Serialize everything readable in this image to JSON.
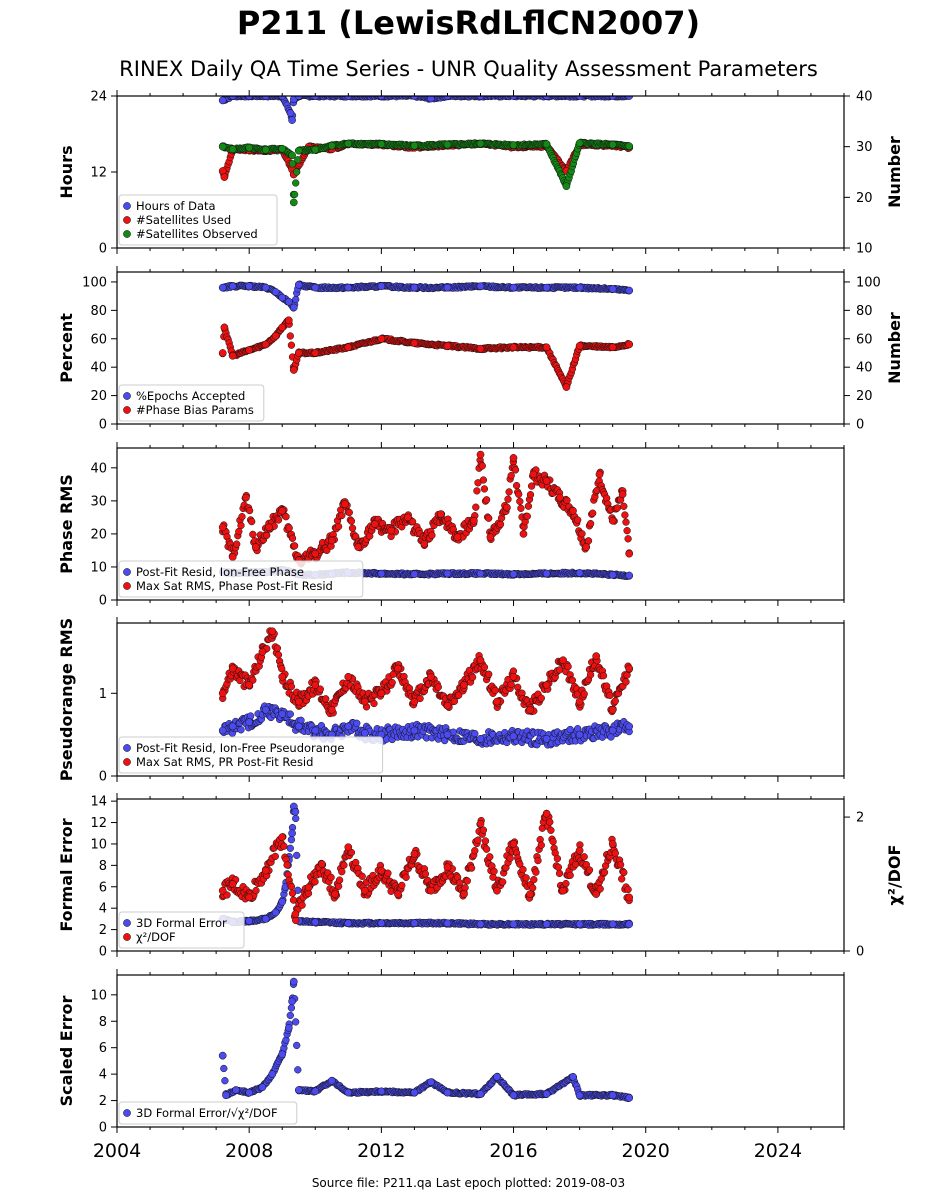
{
  "header": {
    "title": "P211 (LewisRdLflCN2007)",
    "subtitle": "RINEX Daily QA Time Series - UNR Quality Assessment Parameters"
  },
  "footer": {
    "source": "Source file: P211.qa Last epoch plotted: 2019-08-03"
  },
  "colors": {
    "blue": "#4b4bf0",
    "red": "#ee1111",
    "green": "#138a13",
    "edge": "#111111"
  },
  "chart_data": [
    {
      "type": "scatter",
      "ylabel": "Hours",
      "ylim": [
        0,
        24
      ],
      "yticks": [
        0,
        12,
        24
      ],
      "y2label": "Number",
      "y2lim": [
        10,
        40
      ],
      "y2ticks": [
        10,
        20,
        30,
        40
      ],
      "xlim": [
        2004,
        2026
      ],
      "legend_position": "lower-left",
      "series": [
        {
          "name": "Hours of Data",
          "color_key": "blue",
          "axis": "left",
          "x": [
            2007.2,
            2007.5,
            2008.0,
            2008.5,
            2009.0,
            2009.25,
            2009.3,
            2009.35,
            2009.5,
            2010.0,
            2011.0,
            2012.0,
            2013.0,
            2013.5,
            2014.0,
            2015.0,
            2016.0,
            2017.0,
            2018.0,
            2019.0,
            2019.5
          ],
          "y": [
            23.3,
            24,
            24,
            24,
            24,
            21.3,
            20.2,
            23.5,
            24,
            24,
            24,
            24,
            24,
            23.6,
            24,
            24,
            24,
            24,
            24,
            24,
            24
          ]
        },
        {
          "name": "#Satellites Used",
          "color_key": "red",
          "axis": "right",
          "x": [
            2007.2,
            2007.25,
            2007.5,
            2008.0,
            2008.5,
            2009.0,
            2009.3,
            2009.35,
            2009.8,
            2010.5,
            2011.0,
            2012.0,
            2013.0,
            2014.0,
            2015.0,
            2016.0,
            2017.0,
            2017.6,
            2018.0,
            2019.0,
            2019.5
          ],
          "y": [
            25.2,
            24,
            29.5,
            29.3,
            29.2,
            29.4,
            25.5,
            24.5,
            30,
            29.5,
            30.5,
            30.4,
            29.8,
            30.2,
            30.6,
            29.9,
            30.1,
            25.2,
            30.4,
            30.2,
            29.8
          ]
        },
        {
          "name": "#Satellites Observed",
          "color_key": "green",
          "axis": "right",
          "x": [
            2007.2,
            2007.5,
            2008.0,
            2008.5,
            2009.0,
            2009.3,
            2009.35,
            2009.5,
            2010.0,
            2010.5,
            2011.0,
            2012.0,
            2013.0,
            2014.0,
            2015.0,
            2016.0,
            2017.0,
            2017.6,
            2018.0,
            2019.0,
            2019.5
          ],
          "y": [
            30,
            29.5,
            29.8,
            29.4,
            29.6,
            28.3,
            19,
            29.2,
            29.4,
            30.2,
            30.6,
            30.5,
            30.2,
            30.4,
            30.6,
            30.3,
            30.5,
            22.2,
            30.7,
            30.4,
            30.1
          ]
        }
      ]
    },
    {
      "type": "scatter",
      "ylabel": "Percent",
      "ylim": [
        0,
        107
      ],
      "yticks": [
        0,
        20,
        40,
        60,
        80,
        100
      ],
      "y2label": "Number",
      "y2lim": [
        0,
        107
      ],
      "y2ticks": [
        0,
        20,
        40,
        60,
        80,
        100
      ],
      "xlim": [
        2004,
        2026
      ],
      "legend_position": "lower-left",
      "series": [
        {
          "name": "%Epochs Accepted",
          "color_key": "blue",
          "axis": "left",
          "x": [
            2007.2,
            2007.5,
            2008.0,
            2008.5,
            2008.8,
            2009.0,
            2009.2,
            2009.35,
            2009.5,
            2010.0,
            2011.0,
            2012.0,
            2013.0,
            2014.0,
            2015.0,
            2016.0,
            2017.0,
            2018.0,
            2019.0,
            2019.5
          ],
          "y": [
            96,
            97,
            97,
            96,
            93,
            89,
            86,
            82,
            98,
            96,
            96,
            97,
            96,
            96,
            97,
            96,
            96,
            96,
            95,
            94
          ]
        },
        {
          "name": "#Phase Bias Params",
          "color_key": "red",
          "axis": "right",
          "x": [
            2007.2,
            2007.25,
            2007.5,
            2008.0,
            2008.5,
            2008.8,
            2009.0,
            2009.2,
            2009.35,
            2009.5,
            2010.0,
            2011.0,
            2012.0,
            2013.0,
            2014.0,
            2015.0,
            2016.0,
            2017.0,
            2017.6,
            2018.0,
            2019.0,
            2019.5
          ],
          "y": [
            50,
            68,
            48,
            52,
            56,
            62,
            68,
            73,
            38,
            50,
            50,
            54,
            60,
            57,
            55,
            53,
            54,
            54,
            26,
            55,
            54,
            56
          ]
        }
      ]
    },
    {
      "type": "scatter",
      "ylabel": "Phase RMS",
      "ylim": [
        0,
        46
      ],
      "yticks": [
        0,
        10,
        20,
        30,
        40
      ],
      "xlim": [
        2004,
        2026
      ],
      "legend_position": "lower-left",
      "series": [
        {
          "name": "Post-Fit Resid, Ion-Free Phase",
          "color_key": "blue",
          "axis": "left",
          "x": [
            2007.2,
            2007.5,
            2008.0,
            2008.5,
            2009.0,
            2009.5,
            2010.0,
            2010.5,
            2011.0,
            2012.0,
            2013.0,
            2014.0,
            2015.0,
            2016.0,
            2017.0,
            2018.0,
            2019.0,
            2019.5
          ],
          "y": [
            8.5,
            8.2,
            8.3,
            8.5,
            9.0,
            7.8,
            7.6,
            8.0,
            8.3,
            8.0,
            7.8,
            8.0,
            8.0,
            7.8,
            8.0,
            8.2,
            7.6,
            7.4
          ]
        },
        {
          "name": "Max Sat RMS, Phase Post-Fit Resid",
          "color_key": "red",
          "axis": "left",
          "x": [
            2007.2,
            2007.5,
            2007.9,
            2008.2,
            2008.6,
            2009.0,
            2009.5,
            2010.0,
            2010.5,
            2010.9,
            2011.3,
            2011.8,
            2012.3,
            2012.8,
            2013.3,
            2013.8,
            2014.3,
            2014.8,
            2015.0,
            2015.3,
            2015.8,
            2016.0,
            2016.3,
            2016.6,
            2017.0,
            2017.4,
            2017.8,
            2018.2,
            2018.6,
            2019.0,
            2019.3,
            2019.5
          ],
          "y": [
            22,
            13,
            31,
            16,
            22,
            27,
            12,
            14,
            18,
            29,
            16,
            23,
            21,
            25,
            17,
            26,
            19,
            24,
            44,
            19,
            28,
            43,
            20,
            38,
            36,
            31,
            27,
            16,
            38,
            24,
            32,
            14
          ]
        }
      ]
    },
    {
      "type": "scatter",
      "ylabel": "Pseudorange RMS",
      "ylim": [
        0,
        1.85
      ],
      "yticks": [
        0,
        1
      ],
      "xlim": [
        2004,
        2026
      ],
      "legend_position": "lower-left",
      "series": [
        {
          "name": "Post-Fit Resid, Ion-Free Pseudorange",
          "color_key": "blue",
          "axis": "left",
          "x": [
            2007.2,
            2007.5,
            2008.0,
            2008.5,
            2009.0,
            2009.5,
            2010.0,
            2010.5,
            2011.0,
            2011.5,
            2012.0,
            2013.0,
            2014.0,
            2015.0,
            2016.0,
            2017.0,
            2018.0,
            2019.0,
            2019.5
          ],
          "y": [
            0.55,
            0.6,
            0.65,
            0.8,
            0.75,
            0.6,
            0.55,
            0.5,
            0.6,
            0.52,
            0.5,
            0.55,
            0.5,
            0.45,
            0.48,
            0.45,
            0.5,
            0.55,
            0.6
          ]
        },
        {
          "name": "Max Sat RMS, PR Post-Fit Resid",
          "color_key": "red",
          "axis": "left",
          "x": [
            2007.2,
            2007.5,
            2008.0,
            2008.4,
            2008.7,
            2009.0,
            2009.5,
            2010.0,
            2010.5,
            2011.0,
            2011.5,
            2012.0,
            2012.5,
            2013.0,
            2013.5,
            2014.0,
            2014.5,
            2015.0,
            2015.5,
            2016.0,
            2016.5,
            2017.0,
            2017.5,
            2018.0,
            2018.5,
            2019.0,
            2019.5
          ],
          "y": [
            1.0,
            1.3,
            1.1,
            1.5,
            1.75,
            1.2,
            0.9,
            1.1,
            0.8,
            1.2,
            0.9,
            1.0,
            1.3,
            0.9,
            1.2,
            0.85,
            1.1,
            1.4,
            0.9,
            1.2,
            0.8,
            1.1,
            1.4,
            0.9,
            1.45,
            0.8,
            1.3
          ]
        }
      ]
    },
    {
      "type": "scatter",
      "ylabel": "Formal Error",
      "ylim": [
        0,
        14.2
      ],
      "yticks": [
        0,
        2,
        4,
        6,
        8,
        10,
        12,
        14
      ],
      "y2label": "χ²/DOF",
      "y2lim": [
        0,
        2.27
      ],
      "y2ticks": [
        0,
        2
      ],
      "xlim": [
        2004,
        2026
      ],
      "legend_position": "lower-left",
      "series": [
        {
          "name": "3D Formal Error",
          "color_key": "blue",
          "axis": "left",
          "x": [
            2007.2,
            2007.5,
            2008.0,
            2008.5,
            2008.8,
            2009.0,
            2009.1,
            2009.2,
            2009.3,
            2009.35,
            2009.4,
            2009.5,
            2010.0,
            2011.0,
            2012.0,
            2013.0,
            2014.0,
            2015.0,
            2016.0,
            2017.0,
            2018.0,
            2019.0,
            2019.5
          ],
          "y": [
            3.0,
            2.7,
            2.8,
            3.0,
            3.6,
            4.6,
            6.0,
            8.5,
            11.0,
            13.5,
            13.0,
            2.8,
            2.7,
            2.6,
            2.6,
            2.6,
            2.6,
            2.5,
            2.5,
            2.5,
            2.5,
            2.5,
            2.5
          ]
        },
        {
          "name": "χ²/DOF",
          "color_key": "red",
          "axis": "right",
          "x": [
            2007.2,
            2007.5,
            2008.0,
            2008.5,
            2009.0,
            2009.4,
            2009.8,
            2010.2,
            2010.6,
            2011.0,
            2011.5,
            2012.0,
            2012.5,
            2013.0,
            2013.5,
            2014.0,
            2014.5,
            2015.0,
            2015.5,
            2016.0,
            2016.5,
            2017.0,
            2017.5,
            2018.0,
            2018.5,
            2019.0,
            2019.5
          ],
          "y": [
            0.9,
            1.0,
            0.8,
            1.2,
            1.7,
            0.55,
            0.95,
            1.3,
            0.85,
            1.55,
            0.9,
            1.2,
            0.85,
            1.45,
            0.9,
            1.25,
            0.85,
            1.9,
            0.9,
            1.6,
            0.85,
            2.05,
            0.9,
            1.5,
            0.85,
            1.6,
            0.8
          ]
        }
      ]
    },
    {
      "type": "scatter",
      "ylabel": "Scaled Error",
      "ylim": [
        0,
        11.5
      ],
      "yticks": [
        0,
        2,
        4,
        6,
        8,
        10
      ],
      "xlim": [
        2004,
        2026
      ],
      "xticks": [
        2004,
        2008,
        2012,
        2016,
        2020,
        2024
      ],
      "legend_position": "lower-left",
      "series": [
        {
          "name": "3D Formal Error/√χ²/DOF",
          "color_key": "blue",
          "axis": "left",
          "x": [
            2007.2,
            2007.3,
            2007.6,
            2008.0,
            2008.4,
            2008.7,
            2009.0,
            2009.2,
            2009.3,
            2009.35,
            2009.5,
            2010.0,
            2010.5,
            2011.0,
            2012.0,
            2013.0,
            2013.5,
            2014.0,
            2015.0,
            2015.5,
            2016.0,
            2017.0,
            2017.8,
            2018.0,
            2019.0,
            2019.5
          ],
          "y": [
            5.4,
            2.4,
            2.8,
            2.6,
            3.0,
            4.0,
            5.5,
            7.5,
            9.5,
            11.0,
            2.8,
            2.7,
            3.5,
            2.6,
            2.7,
            2.6,
            3.4,
            2.6,
            2.5,
            3.8,
            2.4,
            2.5,
            3.8,
            2.4,
            2.4,
            2.2
          ]
        }
      ]
    }
  ]
}
